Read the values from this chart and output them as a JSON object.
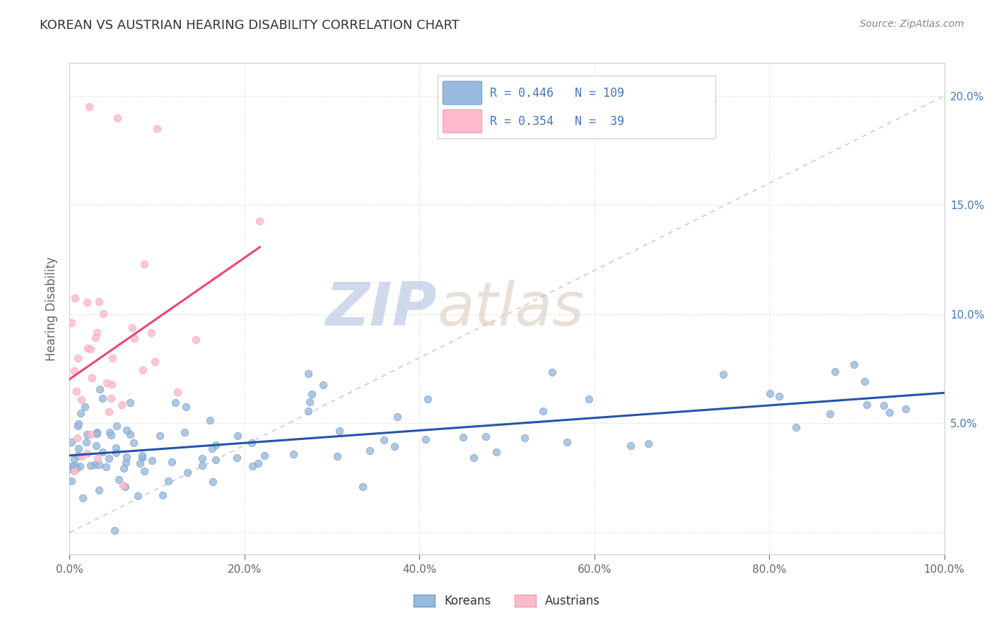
{
  "title": "KOREAN VS AUSTRIAN HEARING DISABILITY CORRELATION CHART",
  "source": "Source: ZipAtlas.com",
  "ylabel": "Hearing Disability",
  "xlim": [
    0.0,
    1.0
  ],
  "ylim": [
    -0.01,
    0.215
  ],
  "xticks": [
    0.0,
    0.2,
    0.4,
    0.6,
    0.8,
    1.0
  ],
  "xtick_labels": [
    "0.0%",
    "20.0%",
    "40.0%",
    "60.0%",
    "80.0%",
    "100.0%"
  ],
  "yticks": [
    0.0,
    0.05,
    0.1,
    0.15,
    0.2
  ],
  "ytick_labels_left": [
    "",
    "",
    "",
    "",
    ""
  ],
  "ytick_labels_right": [
    "",
    "5.0%",
    "10.0%",
    "15.0%",
    "20.0%"
  ],
  "korean_color": "#99BBDD",
  "korean_edge_color": "#7799CC",
  "austrian_color": "#FFBBCC",
  "austrian_edge_color": "#FF99AA",
  "trendline_korean_color": "#2255AA",
  "trendline_austrian_color": "#EE4477",
  "diagonal_color": "#CCCCCC",
  "watermark_zip": "ZIP",
  "watermark_atlas": "atlas",
  "legend_R_korean": "R = 0.446",
  "legend_N_korean": "N = 109",
  "legend_R_austrian": "R = 0.354",
  "legend_N_austrian": "N =  39",
  "title_color": "#333333",
  "title_fontsize": 13,
  "source_color": "#888888",
  "axis_label_color": "#666666",
  "tick_color": "#666666",
  "right_tick_color": "#4477BB",
  "background_color": "#FFFFFF",
  "grid_color": "#DDDDDD"
}
